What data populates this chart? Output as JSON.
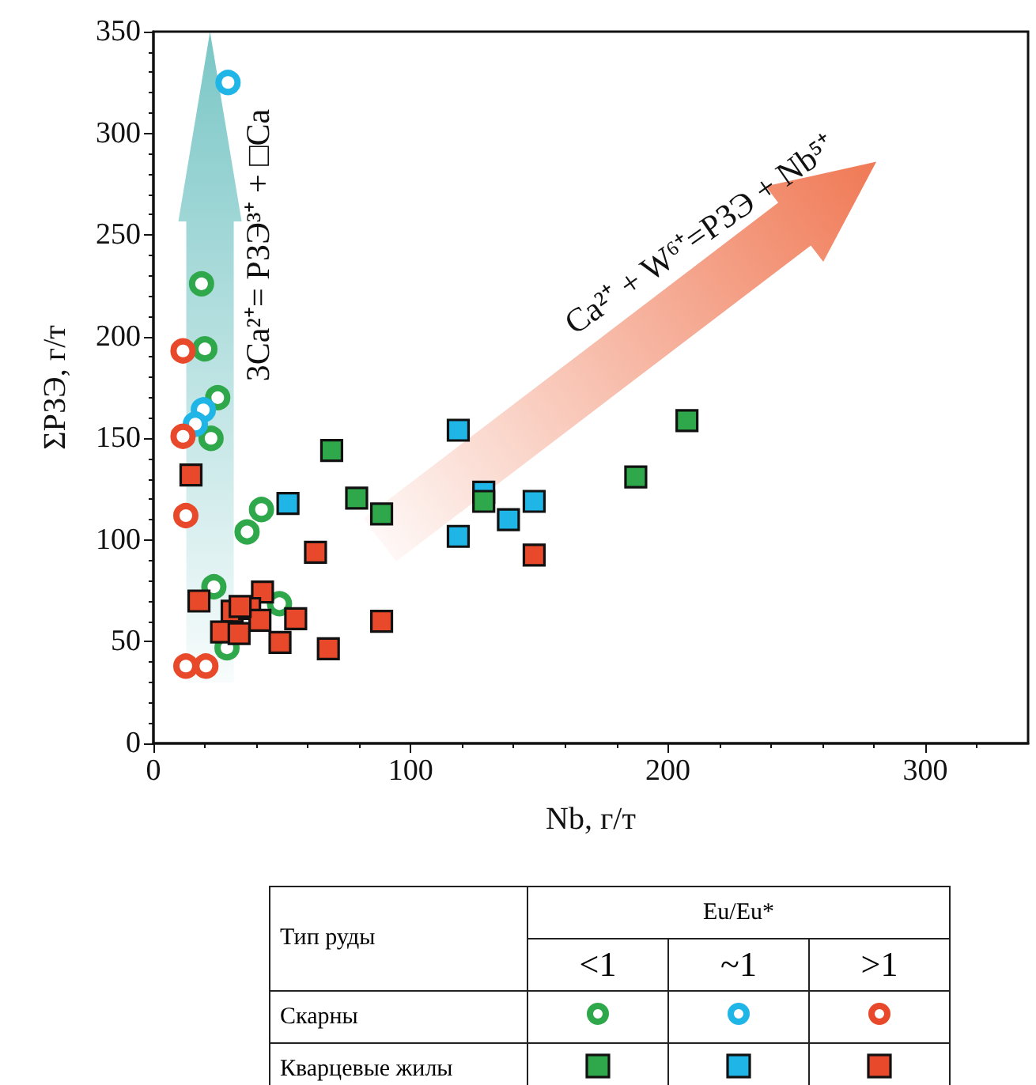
{
  "chart_data": {
    "type": "scatter",
    "xlabel": "Nb, г/т",
    "ylabel": "ΣРЗЭ, г/т",
    "xlim": [
      0,
      340
    ],
    "xticks": [
      0,
      100,
      200,
      300
    ],
    "ylim": [
      0,
      350
    ],
    "yticks": [
      0,
      50,
      100,
      150,
      200,
      250,
      300,
      350
    ],
    "grid": false,
    "series": [
      {
        "marker": "circle",
        "color": "#2ea84a",
        "x": [
          18.7,
          20,
          25,
          22.4,
          42,
          36.4,
          23.5,
          49,
          28.6
        ],
        "values": [
          226,
          194,
          170,
          150,
          115,
          104,
          77,
          68.7,
          47
        ]
      },
      {
        "marker": "circle",
        "color": "#1fb5e6",
        "x": [
          29,
          19.4,
          16.3
        ],
        "values": [
          325,
          164,
          157
        ]
      },
      {
        "marker": "circle",
        "color": "#e8492a",
        "x": [
          11.5,
          11.5,
          12.6,
          12.6,
          20.4
        ],
        "values": [
          193,
          151,
          112,
          38,
          38
        ]
      },
      {
        "marker": "square",
        "color": "#2ea84a",
        "x": [
          69.3,
          79,
          88.7,
          128.4,
          187.5,
          207.4
        ],
        "values": [
          144,
          120.6,
          112.8,
          119,
          131,
          158.7
        ]
      },
      {
        "marker": "square",
        "color": "#1fb5e6",
        "x": [
          52.3,
          118.5,
          128.4,
          118.5,
          138,
          148
        ],
        "values": [
          118,
          154,
          123.5,
          101.8,
          110,
          119
        ]
      },
      {
        "marker": "square",
        "color": "#e8492a",
        "x": [
          14.6,
          63,
          148,
          17.7,
          42.4,
          30.6,
          37.4,
          41.4,
          55.3,
          26.5,
          33.3,
          49.2,
          68,
          88.7,
          33.7
        ],
        "values": [
          132,
          94,
          92.6,
          70,
          74.4,
          65,
          66.3,
          60.5,
          61.3,
          54.8,
          54,
          49.6,
          46.5,
          60,
          67.3
        ]
      }
    ],
    "annotations": [
      "3Ca²⁺= РЗЭ³⁺ + □Ca",
      "Ca²⁺ + W⁶⁺=РЗЭ + Nb⁵⁺",
      "Тип руды",
      "Eu/Eu*",
      "<1",
      "~1",
      ">1",
      "Скарны",
      "Кварцевые жилы"
    ]
  }
}
